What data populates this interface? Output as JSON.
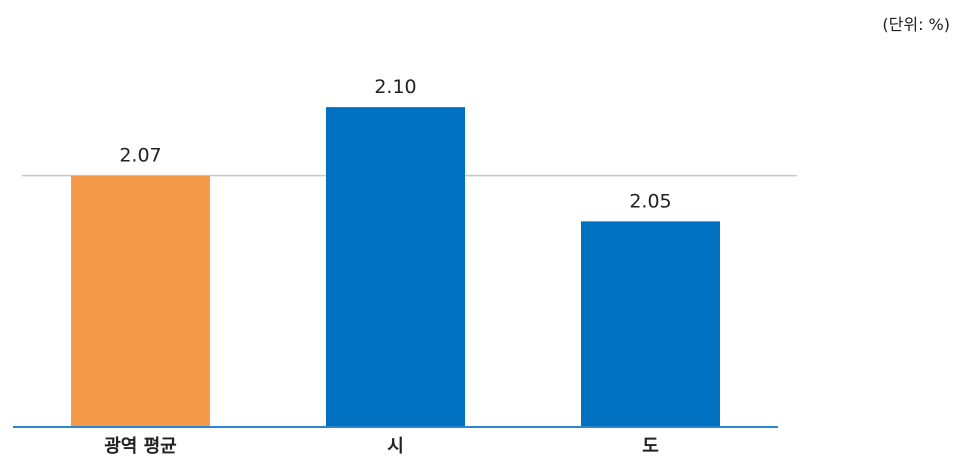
{
  "unit_label": "(단위: %)",
  "colors": {
    "average": "#F59A48",
    "primary": "#0070C0",
    "reference_line": "#C8C8C8",
    "baseline": "#2E86D1",
    "text": "#222222"
  },
  "chart_data": {
    "type": "bar",
    "title": "",
    "xlabel": "",
    "ylabel": "",
    "categories": [
      "광역 평균",
      "시",
      "도"
    ],
    "values": [
      2.07,
      2.1,
      2.05
    ],
    "value_labels": [
      "2.07",
      "2.10",
      "2.05"
    ],
    "reference_line": 2.07,
    "ylim": [
      1.96,
      2.111
    ],
    "grid": false,
    "legend": "none",
    "bar_colors": [
      "#F59A48",
      "#0070C0",
      "#0070C0"
    ]
  }
}
